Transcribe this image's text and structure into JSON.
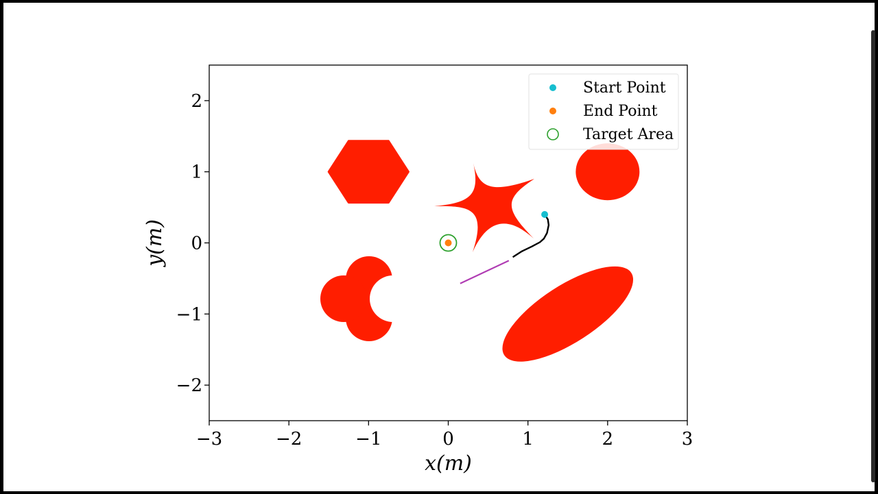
{
  "chart_data": {
    "type": "scatter",
    "xlabel": "x(m)",
    "ylabel": "y(m)",
    "xlim": [
      -3,
      3
    ],
    "ylim": [
      -2.5,
      2.5
    ],
    "xticks": [
      -3,
      -2,
      -1,
      0,
      1,
      2,
      3
    ],
    "yticks": [
      -2,
      -1,
      0,
      1,
      2
    ],
    "xtick_labels": [
      "−3",
      "−2",
      "−1",
      "0",
      "1",
      "2",
      "3"
    ],
    "ytick_labels": [
      "−2",
      "−1",
      "0",
      "1",
      "2"
    ],
    "grid": false,
    "legend": {
      "placement": "top-right",
      "entries": [
        {
          "label": "Start Point",
          "marker": "dot",
          "color": "#17becf"
        },
        {
          "label": "End Point",
          "marker": "dot",
          "color": "#ff7f0e"
        },
        {
          "label": "Target Area",
          "marker": "ring",
          "color": "#2ca02c"
        }
      ]
    },
    "points": {
      "start": {
        "x": 1.21,
        "y": 0.4
      },
      "end": {
        "x": 0.0,
        "y": 0.0
      },
      "target_area": {
        "x": 0.0,
        "y": 0.0,
        "radius": 0.1
      }
    },
    "trajectory": {
      "color": "#000000",
      "points": [
        [
          1.21,
          0.4
        ],
        [
          1.25,
          0.33
        ],
        [
          1.26,
          0.25
        ],
        [
          1.24,
          0.14
        ],
        [
          1.2,
          0.06
        ],
        [
          1.15,
          0.01
        ],
        [
          1.05,
          -0.05
        ],
        [
          0.92,
          -0.12
        ],
        [
          0.81,
          -0.2
        ]
      ]
    },
    "planned_path": {
      "color": "#b03cb3",
      "points": [
        [
          0.76,
          -0.25
        ],
        [
          0.15,
          -0.57
        ]
      ]
    },
    "obstacles": {
      "color": "#ff1e00",
      "shapes": [
        {
          "shape": "hexagon",
          "center": [
            -1.0,
            1.0
          ],
          "circumradius": 0.5
        },
        {
          "shape": "circle",
          "center": [
            2.0,
            1.0
          ],
          "radius": 0.4
        },
        {
          "shape": "star",
          "center": [
            0.5,
            0.5
          ]
        },
        {
          "shape": "cloverleaf",
          "center": [
            -1.0,
            -0.8
          ]
        },
        {
          "shape": "ellipse",
          "center": [
            1.5,
            -1.0
          ],
          "semi_axes": [
            0.95,
            0.4
          ],
          "angle_deg": 33
        }
      ]
    }
  },
  "colors": {
    "obstacle": "#ff1e00",
    "start": "#17becf",
    "end": "#ff7f0e",
    "target": "#2ca02c",
    "trajectory": "#000000",
    "planned_path": "#b03cb3"
  }
}
